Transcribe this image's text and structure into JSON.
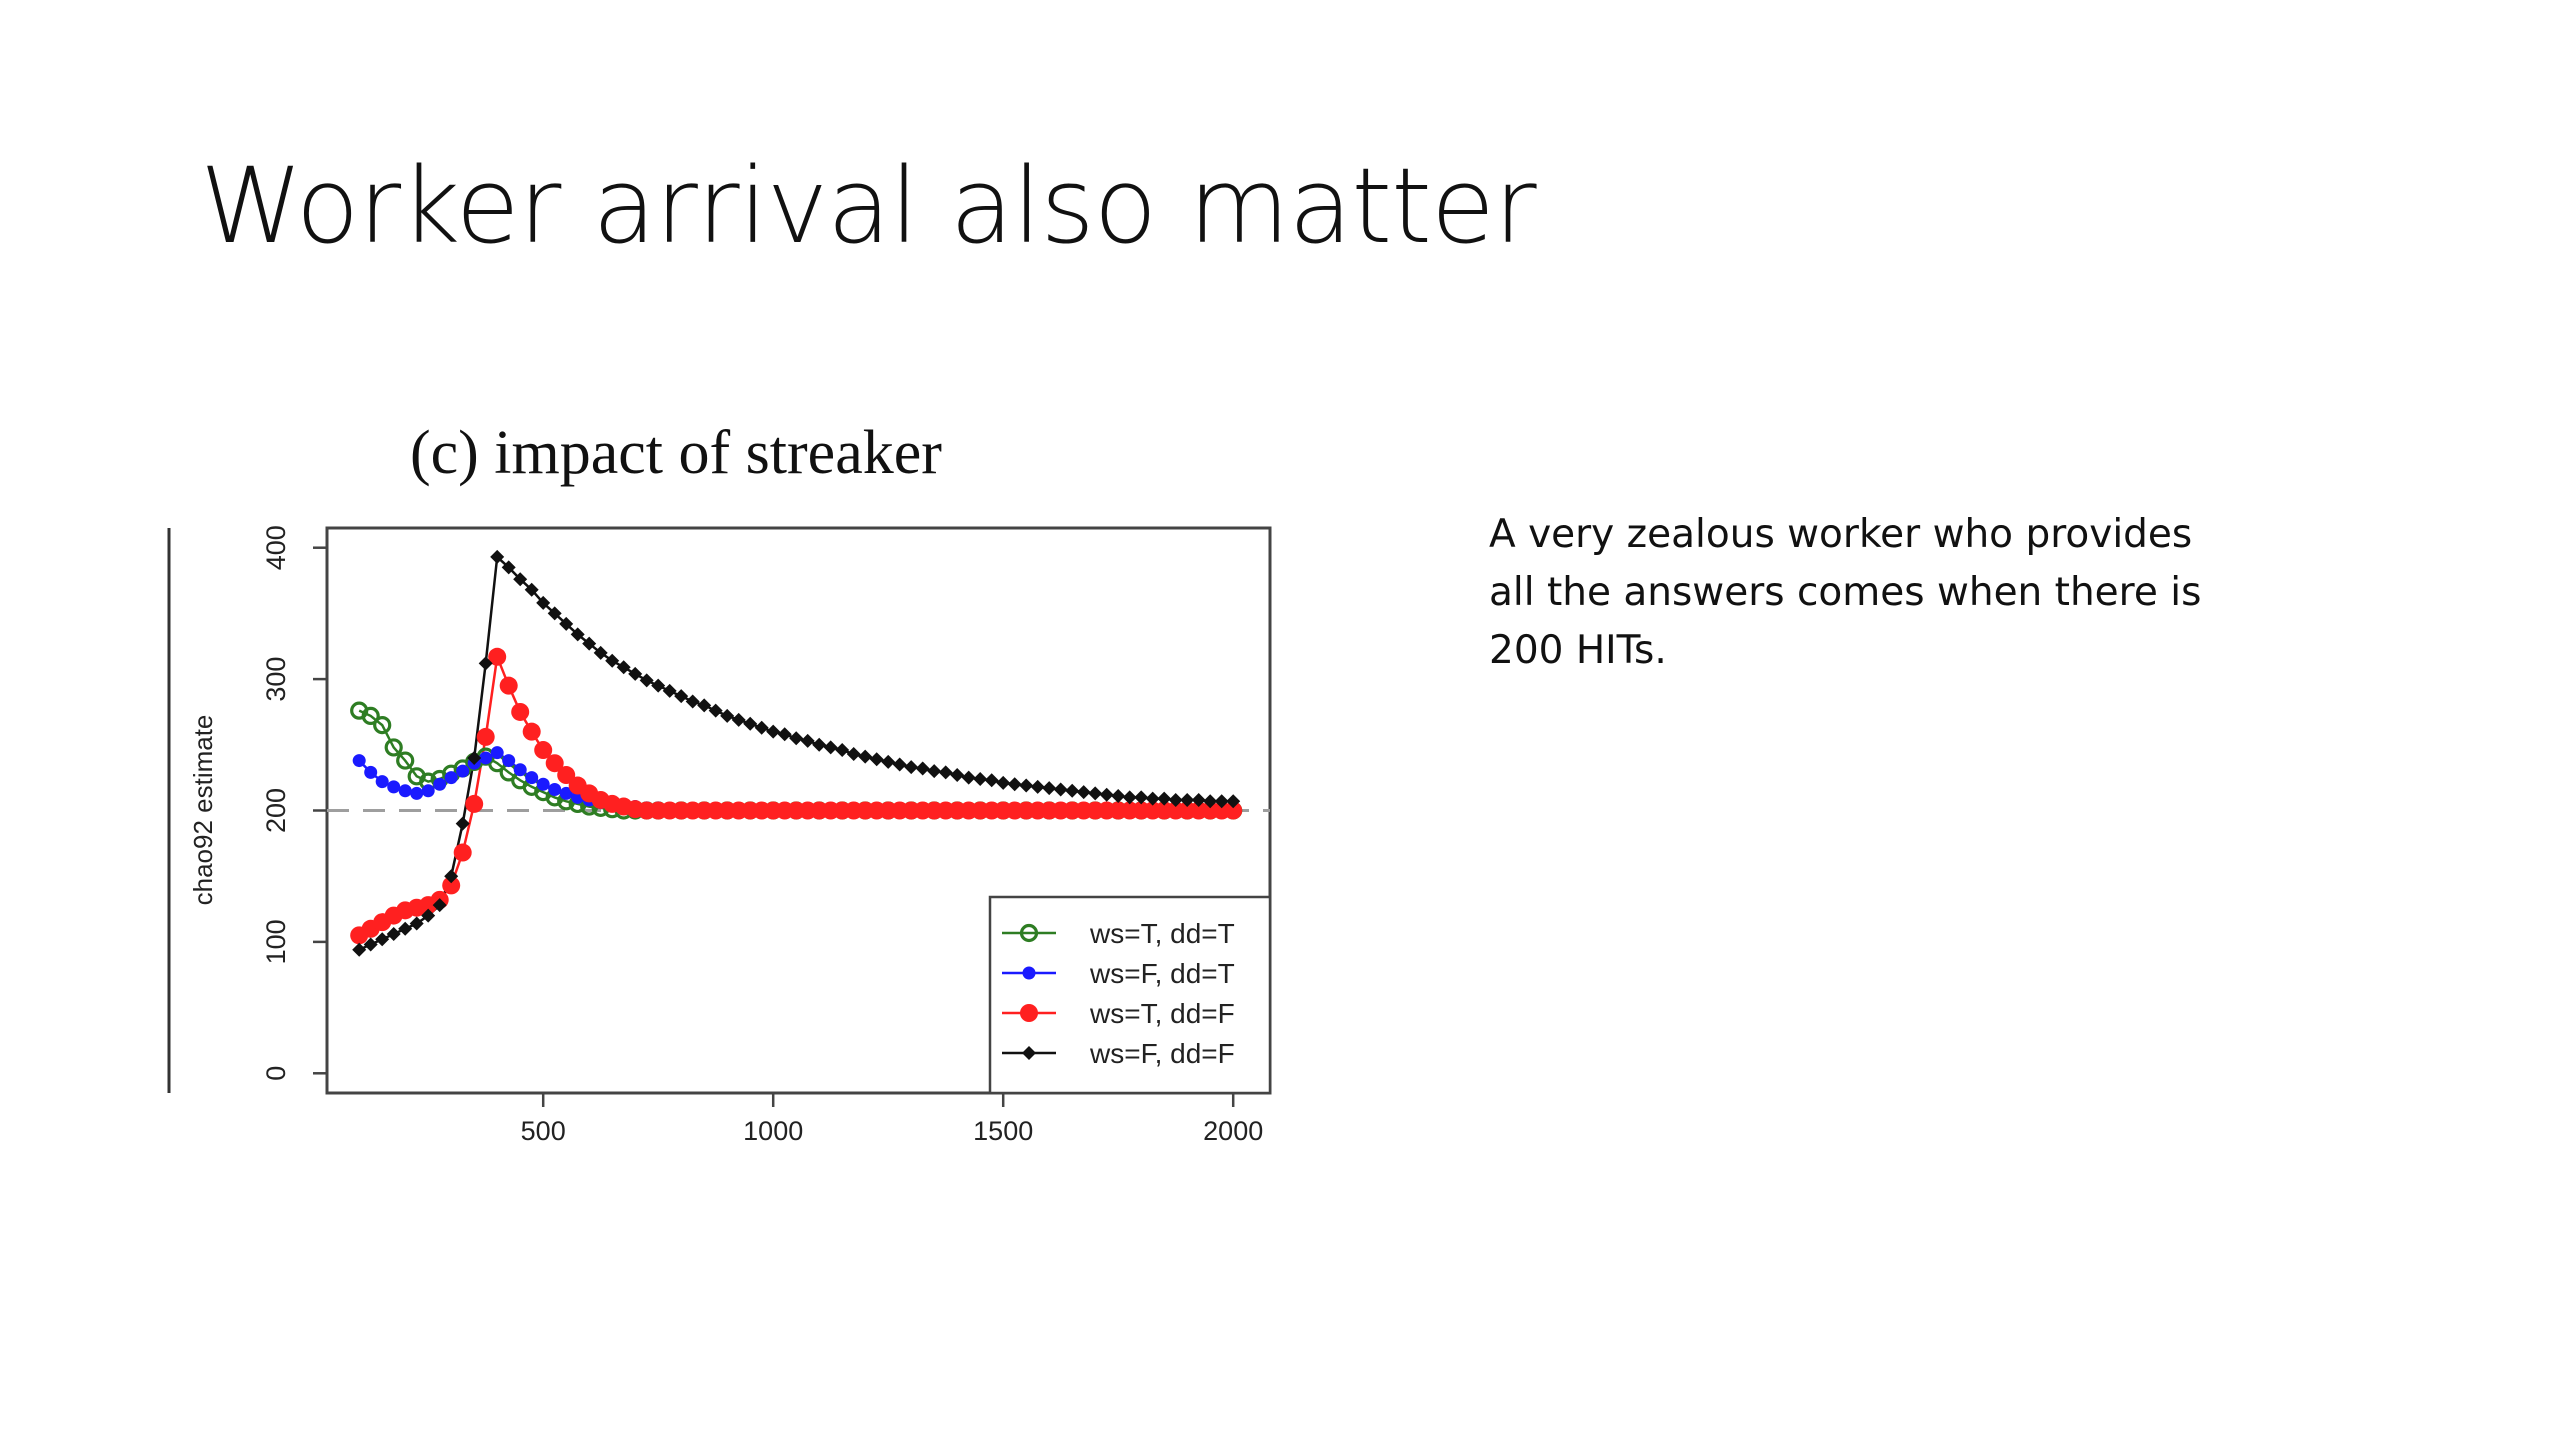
{
  "slide": {
    "title": "Worker arrival also  matter",
    "note": "A very zealous worker who provides all the answers comes when there is 200 HITs."
  },
  "chart_data": {
    "type": "scatter",
    "title": "(c) impact of streaker",
    "xlabel": "",
    "ylabel": "chao92 estimate",
    "xlim": [
      30,
      2080
    ],
    "ylim": [
      -15,
      415
    ],
    "xticks": [
      500,
      1000,
      1500,
      2000
    ],
    "yticks": [
      0,
      100,
      200,
      300,
      400
    ],
    "reference_line": {
      "y": 200,
      "style": "dashed",
      "color": "#9e9e9e"
    },
    "legend": {
      "position": "bottom-right"
    },
    "grid": false,
    "series": [
      {
        "name": "ws=T, dd=T",
        "color": "#2e7d23",
        "marker": "open-circle",
        "x": [
          100,
          125,
          150,
          175,
          200,
          225,
          250,
          275,
          300,
          325,
          350,
          375,
          400,
          425,
          450,
          475,
          500,
          525,
          550,
          575,
          600,
          625,
          650,
          675,
          700,
          725,
          750,
          800,
          850,
          900,
          950,
          1000,
          1050,
          1100,
          1150,
          1200,
          1250,
          1300,
          1350,
          1400,
          1450,
          1500,
          1550,
          1600,
          1650,
          1700,
          1750,
          1800,
          1850,
          1900,
          1950,
          2000
        ],
        "y": [
          276,
          272,
          265,
          248,
          238,
          226,
          222,
          224,
          228,
          232,
          237,
          241,
          236,
          229,
          223,
          218,
          214,
          210,
          207,
          205,
          203,
          202,
          201,
          200,
          200,
          200,
          200,
          200,
          200,
          200,
          200,
          200,
          200,
          200,
          200,
          200,
          200,
          200,
          200,
          200,
          200,
          200,
          200,
          200,
          200,
          200,
          200,
          200,
          200,
          200,
          200,
          200
        ]
      },
      {
        "name": "ws=F, dd=T",
        "color": "#1a1aff",
        "marker": "filled-circle",
        "x": [
          100,
          125,
          150,
          175,
          200,
          225,
          250,
          275,
          300,
          325,
          350,
          375,
          400,
          425,
          450,
          475,
          500,
          525,
          550,
          575,
          600,
          625,
          650,
          675,
          700,
          725,
          750,
          775,
          800,
          850,
          900,
          950,
          1000,
          1050,
          1100,
          1150,
          1200,
          1250,
          1300,
          1350,
          1400,
          1450,
          1500,
          1550,
          1600,
          1650,
          1700,
          1750,
          1800,
          1850,
          1900,
          1950,
          2000
        ],
        "y": [
          238,
          229,
          222,
          218,
          215,
          213,
          215,
          220,
          225,
          230,
          236,
          240,
          244,
          238,
          231,
          225,
          220,
          216,
          213,
          210,
          208,
          206,
          205,
          204,
          203,
          202,
          202,
          201,
          201,
          200,
          200,
          200,
          200,
          200,
          200,
          200,
          200,
          200,
          200,
          200,
          200,
          200,
          200,
          200,
          200,
          200,
          200,
          200,
          200,
          200,
          200,
          200,
          200
        ]
      },
      {
        "name": "ws=T, dd=F",
        "color": "#ff2020",
        "marker": "filled-circle",
        "x": [
          100,
          125,
          150,
          175,
          200,
          225,
          250,
          275,
          300,
          325,
          350,
          375,
          400,
          425,
          450,
          475,
          500,
          525,
          550,
          575,
          600,
          625,
          650,
          675,
          700,
          725,
          750,
          775,
          800,
          825,
          850,
          875,
          900,
          925,
          950,
          975,
          1000,
          1025,
          1050,
          1075,
          1100,
          1125,
          1150,
          1175,
          1200,
          1225,
          1250,
          1275,
          1300,
          1325,
          1350,
          1375,
          1400,
          1425,
          1450,
          1475,
          1500,
          1525,
          1550,
          1575,
          1600,
          1625,
          1650,
          1675,
          1700,
          1725,
          1750,
          1775,
          1800,
          1825,
          1850,
          1875,
          1900,
          1925,
          1950,
          1975,
          2000
        ],
        "y": [
          105,
          110,
          115,
          120,
          124,
          126,
          128,
          132,
          143,
          168,
          205,
          256,
          317,
          295,
          275,
          260,
          246,
          236,
          227,
          219,
          213,
          208,
          205,
          203,
          201,
          200,
          200,
          200,
          200,
          200,
          200,
          200,
          200,
          200,
          200,
          200,
          200,
          200,
          200,
          200,
          200,
          200,
          200,
          200,
          200,
          200,
          200,
          200,
          200,
          200,
          200,
          200,
          200,
          200,
          200,
          200,
          200,
          200,
          200,
          200,
          200,
          200,
          200,
          200,
          200,
          200,
          200,
          200,
          200,
          200,
          200,
          200,
          200,
          200,
          200,
          200,
          200
        ]
      },
      {
        "name": "ws=F, dd=F",
        "color": "#111111",
        "marker": "filled-diamond",
        "x": [
          100,
          125,
          150,
          175,
          200,
          225,
          250,
          275,
          300,
          325,
          350,
          375,
          400,
          425,
          450,
          475,
          500,
          525,
          550,
          575,
          600,
          625,
          650,
          675,
          700,
          725,
          750,
          775,
          800,
          825,
          850,
          875,
          900,
          925,
          950,
          975,
          1000,
          1025,
          1050,
          1075,
          1100,
          1125,
          1150,
          1175,
          1200,
          1225,
          1250,
          1275,
          1300,
          1325,
          1350,
          1375,
          1400,
          1425,
          1450,
          1475,
          1500,
          1525,
          1550,
          1575,
          1600,
          1625,
          1650,
          1675,
          1700,
          1725,
          1750,
          1775,
          1800,
          1825,
          1850,
          1875,
          1900,
          1925,
          1950,
          1975,
          2000
        ],
        "y": [
          94,
          98,
          102,
          106,
          110,
          114,
          120,
          128,
          150,
          190,
          240,
          312,
          393,
          385,
          376,
          368,
          358,
          350,
          342,
          334,
          327,
          320,
          314,
          309,
          304,
          299,
          295,
          291,
          287,
          283,
          280,
          276,
          272,
          269,
          266,
          263,
          260,
          258,
          255,
          253,
          250,
          248,
          246,
          243,
          241,
          239,
          237,
          235,
          233,
          232,
          230,
          229,
          227,
          225,
          224,
          223,
          221,
          220,
          219,
          218,
          217,
          216,
          215,
          214,
          213,
          212,
          211,
          210,
          210,
          209,
          209,
          208,
          208,
          208,
          207,
          207,
          207
        ]
      }
    ]
  }
}
